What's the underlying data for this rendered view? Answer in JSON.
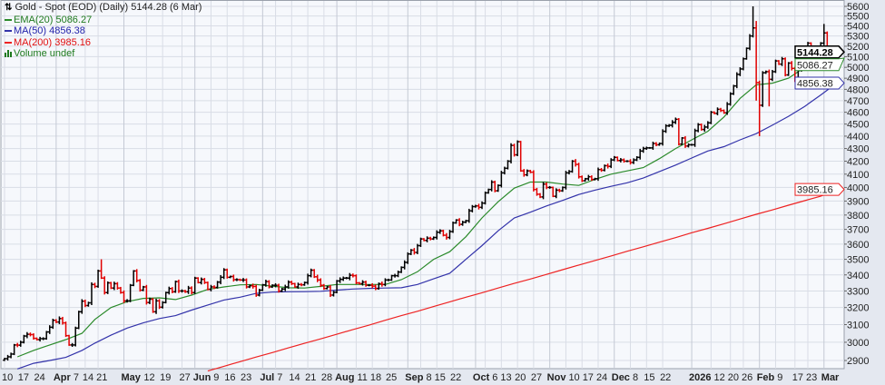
{
  "legend": {
    "title": "Gold - Spot (EOD) (Daily) 5144.28 (6 Mar)",
    "ema20": "EMA(20) 5086.27",
    "ma50": "MA(50) 4856.38",
    "ma200": "MA(200) 3985.16",
    "volume": "Volume undef"
  },
  "colors": {
    "up_bar": "#000000",
    "down_bar": "#e00000",
    "ema20": "#2a8a2a",
    "ma50": "#3333aa",
    "ma200": "#ee2222",
    "plot_bg": "#f6f8fc",
    "grid": "#d9dde6"
  },
  "chart_data": {
    "type": "bar",
    "bar_style": "OHLC",
    "scale": "log",
    "ylim": [
      2850,
      5650
    ],
    "grid": true,
    "legend_placement": "top-left",
    "y_axis_side": "right",
    "y_ticks": [
      "2900",
      "3000",
      "3100",
      "3200",
      "3300",
      "3400",
      "3500",
      "3600",
      "3700",
      "3800",
      "3900",
      "4000",
      "4100",
      "4200",
      "4300",
      "4400",
      "4500",
      "4600",
      "4700",
      "4800",
      "4900",
      "5000",
      "5100",
      "5200",
      "5300",
      "5400",
      "5500",
      "5600"
    ],
    "x_ticks": [
      {
        "label": "10",
        "date": "2025-03-10",
        "bold": false
      },
      {
        "label": "17",
        "date": "2025-03-17",
        "bold": false
      },
      {
        "label": "24",
        "date": "2025-03-24",
        "bold": false
      },
      {
        "label": "Apr",
        "date": "2025-04-01",
        "bold": true
      },
      {
        "label": "7",
        "date": "2025-04-07",
        "bold": false
      },
      {
        "label": "14",
        "date": "2025-04-14",
        "bold": false
      },
      {
        "label": "21",
        "date": "2025-04-21",
        "bold": false
      },
      {
        "label": "May",
        "date": "2025-05-01",
        "bold": true
      },
      {
        "label": "12",
        "date": "2025-05-12",
        "bold": false
      },
      {
        "label": "19",
        "date": "2025-05-19",
        "bold": false
      },
      {
        "label": "27",
        "date": "2025-05-27",
        "bold": false
      },
      {
        "label": "Jun",
        "date": "2025-06-02",
        "bold": true
      },
      {
        "label": "9",
        "date": "2025-06-09",
        "bold": false
      },
      {
        "label": "16",
        "date": "2025-06-16",
        "bold": false
      },
      {
        "label": "23",
        "date": "2025-06-23",
        "bold": false
      },
      {
        "label": "Jul",
        "date": "2025-07-01",
        "bold": true
      },
      {
        "label": "7",
        "date": "2025-07-07",
        "bold": false
      },
      {
        "label": "14",
        "date": "2025-07-14",
        "bold": false
      },
      {
        "label": "21",
        "date": "2025-07-21",
        "bold": false
      },
      {
        "label": "28",
        "date": "2025-07-28",
        "bold": false
      },
      {
        "label": "Aug",
        "date": "2025-08-01",
        "bold": true
      },
      {
        "label": "11",
        "date": "2025-08-11",
        "bold": false
      },
      {
        "label": "18",
        "date": "2025-08-18",
        "bold": false
      },
      {
        "label": "25",
        "date": "2025-08-25",
        "bold": false
      },
      {
        "label": "Sep",
        "date": "2025-09-02",
        "bold": true
      },
      {
        "label": "8",
        "date": "2025-09-08",
        "bold": false
      },
      {
        "label": "15",
        "date": "2025-09-15",
        "bold": false
      },
      {
        "label": "22",
        "date": "2025-09-22",
        "bold": false
      },
      {
        "label": "Oct",
        "date": "2025-10-01",
        "bold": true
      },
      {
        "label": "6",
        "date": "2025-10-06",
        "bold": false
      },
      {
        "label": "13",
        "date": "2025-10-13",
        "bold": false
      },
      {
        "label": "20",
        "date": "2025-10-20",
        "bold": false
      },
      {
        "label": "27",
        "date": "2025-10-27",
        "bold": false
      },
      {
        "label": "Nov",
        "date": "2025-11-03",
        "bold": true
      },
      {
        "label": "10",
        "date": "2025-11-10",
        "bold": false
      },
      {
        "label": "17",
        "date": "2025-11-17",
        "bold": false
      },
      {
        "label": "24",
        "date": "2025-11-24",
        "bold": false
      },
      {
        "label": "Dec",
        "date": "2025-12-01",
        "bold": true
      },
      {
        "label": "8",
        "date": "2025-12-08",
        "bold": false
      },
      {
        "label": "15",
        "date": "2025-12-15",
        "bold": false
      },
      {
        "label": "22",
        "date": "2025-12-22",
        "bold": false
      },
      {
        "label": "2026",
        "date": "2026-01-02",
        "bold": true
      },
      {
        "label": "12",
        "date": "2026-01-12",
        "bold": false
      },
      {
        "label": "20",
        "date": "2026-01-20",
        "bold": false
      },
      {
        "label": "26",
        "date": "2026-01-26",
        "bold": false
      },
      {
        "label": "Feb",
        "date": "2026-02-02",
        "bold": true
      },
      {
        "label": "9",
        "date": "2026-02-09",
        "bold": false
      },
      {
        "label": "17",
        "date": "2026-02-17",
        "bold": false
      },
      {
        "label": "23",
        "date": "2026-02-23",
        "bold": false
      },
      {
        "label": "Mar",
        "date": "2026-03-02",
        "bold": true
      }
    ],
    "price_tags": [
      {
        "label": "5086.27",
        "value": 5086.27,
        "series": "ema20"
      },
      {
        "label": "5144.28",
        "value": 5144.28,
        "series": "price"
      },
      {
        "label": "4856.38",
        "value": 4856.38,
        "series": "ma50"
      },
      {
        "label": "3985.16",
        "value": 3985.16,
        "series": "ma200"
      }
    ],
    "holidays": [
      "2025-04-18"
    ],
    "extremes": [
      {
        "date": "2025-04-22",
        "high": 3500
      },
      {
        "date": "2026-01-29",
        "high": 5600
      },
      {
        "date": "2026-01-30",
        "high": 5450,
        "low": 4700
      },
      {
        "date": "2026-02-02",
        "low": 4400
      },
      {
        "date": "2026-02-05",
        "low": 4650
      },
      {
        "date": "2026-03-02",
        "high": 5420
      }
    ],
    "weeks": [
      {
        "week": "2025-03-10",
        "close": [
          2910,
          2920,
          2935,
          2985,
          2984
        ],
        "ema20": 2920,
        "ma50": 2855,
        "ma200": null
      },
      {
        "week": "2025-03-17",
        "close": [
          3000,
          3035,
          3045,
          3043,
          3022
        ],
        "ema20": 2955,
        "ma50": 2885,
        "ma200": null
      },
      {
        "week": "2025-03-24",
        "close": [
          3015,
          3020,
          3020,
          3058,
          3085
        ],
        "ema20": 2985,
        "ma50": 2900,
        "ma200": null
      },
      {
        "week": "2025-03-31",
        "close": [
          3125,
          3115,
          3135,
          3110,
          3037
        ],
        "ema20": 3015,
        "ma50": 2917,
        "ma200": null
      },
      {
        "week": "2025-04-07",
        "close": [
          2985,
          2985,
          3080,
          3175,
          3238
        ],
        "ema20": 3050,
        "ma50": 2955,
        "ma200": null
      },
      {
        "week": "2025-04-14",
        "close": [
          3212,
          3228,
          3340,
          3328
        ],
        "ema20": 3130,
        "ma50": 2995,
        "ma200": null
      },
      {
        "week": "2025-04-21",
        "close": [
          3425,
          3380,
          3290,
          3350,
          3318
        ],
        "ema20": 3200,
        "ma50": 3040,
        "ma200": null
      },
      {
        "week": "2025-04-28",
        "close": [
          3345,
          3318,
          3290,
          3240,
          3240
        ],
        "ema20": 3235,
        "ma50": 3080,
        "ma200": null
      },
      {
        "week": "2025-05-05",
        "close": [
          3335,
          3425,
          3365,
          3305,
          3325
        ],
        "ema20": 3255,
        "ma50": 3110,
        "ma200": null
      },
      {
        "week": "2025-05-12",
        "close": [
          3230,
          3250,
          3175,
          3240,
          3202
        ],
        "ema20": 3258,
        "ma50": 3135,
        "ma200": null
      },
      {
        "week": "2025-05-19",
        "close": [
          3230,
          3290,
          3315,
          3295,
          3358
        ],
        "ema20": 3248,
        "ma50": 3152,
        "ma200": null
      },
      {
        "week": "2025-05-26",
        "close": [
          3300,
          3300,
          3295,
          3318,
          3290
        ],
        "ema20": 3275,
        "ma50": 3185,
        "ma200": null
      },
      {
        "week": "2025-06-02",
        "close": [
          3380,
          3352,
          3372,
          3352,
          3310
        ],
        "ema20": 3310,
        "ma50": 3215,
        "ma200": 2844
      },
      {
        "week": "2025-06-09",
        "close": [
          3325,
          3322,
          3355,
          3385,
          3432
        ],
        "ema20": 3325,
        "ma50": 3245,
        "ma200": 2869
      },
      {
        "week": "2025-06-16",
        "close": [
          3385,
          3390,
          3370,
          3370,
          3368
        ],
        "ema20": 3338,
        "ma50": 3262,
        "ma200": 2894
      },
      {
        "week": "2025-06-23",
        "close": [
          3368,
          3325,
          3332,
          3328,
          3275
        ],
        "ema20": 3340,
        "ma50": 3285,
        "ma200": 2919
      },
      {
        "week": "2025-06-30",
        "close": [
          3305,
          3338,
          3358,
          3325,
          3335
        ],
        "ema20": 3330,
        "ma50": 3293,
        "ma200": 2943
      },
      {
        "week": "2025-07-07",
        "close": [
          3335,
          3300,
          3312,
          3325,
          3355
        ],
        "ema20": 3320,
        "ma50": 3295,
        "ma200": 2969
      },
      {
        "week": "2025-07-14",
        "close": [
          3345,
          3325,
          3340,
          3338,
          3352
        ],
        "ema20": 3318,
        "ma50": 3296,
        "ma200": 2994
      },
      {
        "week": "2025-07-21",
        "close": [
          3395,
          3430,
          3388,
          3368,
          3335
        ],
        "ema20": 3328,
        "ma50": 3298,
        "ma200": 3019
      },
      {
        "week": "2025-07-28",
        "close": [
          3315,
          3325,
          3275,
          3292,
          3362
        ],
        "ema20": 3340,
        "ma50": 3305,
        "ma200": 3045
      },
      {
        "week": "2025-08-04",
        "close": [
          3372,
          3380,
          3380,
          3398,
          3395
        ],
        "ema20": 3340,
        "ma50": 3312,
        "ma200": 3072
      },
      {
        "week": "2025-08-11",
        "close": [
          3350,
          3345,
          3355,
          3335,
          3335
        ],
        "ema20": 3340,
        "ma50": 3316,
        "ma200": 3097
      },
      {
        "week": "2025-08-18",
        "close": [
          3330,
          3315,
          3345,
          3340,
          3368
        ],
        "ema20": 3340,
        "ma50": 3318,
        "ma200": 3125
      },
      {
        "week": "2025-08-25",
        "close": [
          3368,
          3395,
          3395,
          3418,
          3448
        ],
        "ema20": 3370,
        "ma50": 3320,
        "ma200": 3152
      },
      {
        "week": "2025-09-01",
        "close": [
          3480,
          3535,
          3560,
          3545,
          3590
        ],
        "ema20": 3420,
        "ma50": 3340,
        "ma200": 3178
      },
      {
        "week": "2025-09-08",
        "close": [
          3635,
          3625,
          3640,
          3635,
          3645
        ],
        "ema20": 3500,
        "ma50": 3375,
        "ma200": 3206
      },
      {
        "week": "2025-09-15",
        "close": [
          3680,
          3690,
          3660,
          3645,
          3685
        ],
        "ema20": 3550,
        "ma50": 3410,
        "ma200": 3234
      },
      {
        "week": "2025-09-22",
        "close": [
          3745,
          3765,
          3735,
          3750,
          3760
        ],
        "ema20": 3650,
        "ma50": 3500,
        "ma200": 3262
      },
      {
        "week": "2025-09-29",
        "close": [
          3830,
          3860,
          3865,
          3855,
          3885
        ],
        "ema20": 3780,
        "ma50": 3590,
        "ma200": 3289
      },
      {
        "week": "2025-10-06",
        "close": [
          3960,
          3985,
          4040,
          3975,
          4015
        ],
        "ema20": 3895,
        "ma50": 3690,
        "ma200": 3318
      },
      {
        "week": "2025-10-13",
        "close": [
          4110,
          4145,
          4200,
          4325,
          4250
        ],
        "ema20": 3995,
        "ma50": 3780,
        "ma200": 3347
      },
      {
        "week": "2025-10-20",
        "close": [
          4355,
          4125,
          4095,
          4125,
          4115
        ],
        "ema20": 4040,
        "ma50": 3820,
        "ma200": 3374
      },
      {
        "week": "2025-10-27",
        "close": [
          3985,
          3950,
          3930,
          4025,
          4000
        ],
        "ema20": 4040,
        "ma50": 3865,
        "ma200": 3403
      },
      {
        "week": "2025-11-03",
        "close": [
          4000,
          3935,
          3980,
          3975,
          4000
        ],
        "ema20": 4025,
        "ma50": 3905,
        "ma200": 3433
      },
      {
        "week": "2025-11-10",
        "close": [
          4110,
          4120,
          4200,
          4175,
          4080
        ],
        "ema20": 4015,
        "ma50": 3948,
        "ma200": 3463
      },
      {
        "week": "2025-11-17",
        "close": [
          4050,
          4065,
          4080,
          4060,
          4065
        ],
        "ema20": 4060,
        "ma50": 3980,
        "ma200": 3492
      },
      {
        "week": "2025-11-24",
        "close": [
          4135,
          4130,
          4165,
          4160,
          4210
        ],
        "ema20": 4100,
        "ma50": 4008,
        "ma200": 3522
      },
      {
        "week": "2025-12-01",
        "close": [
          4230,
          4205,
          4210,
          4200,
          4200
        ],
        "ema20": 4125,
        "ma50": 4035,
        "ma200": 3553
      },
      {
        "week": "2025-12-08",
        "close": [
          4190,
          4210,
          4230,
          4280,
          4300
        ],
        "ema20": 4150,
        "ma50": 4070,
        "ma200": 3582
      },
      {
        "week": "2025-12-15",
        "close": [
          4305,
          4305,
          4340,
          4330,
          4340
        ],
        "ema20": 4220,
        "ma50": 4120,
        "ma200": 3613
      },
      {
        "week": "2025-12-22",
        "close": [
          4440,
          4485,
          4490,
          4515,
          4540
        ],
        "ema20": 4300,
        "ma50": 4170,
        "ma200": 3644
      },
      {
        "week": "2025-12-29",
        "close": [
          4335,
          4385,
          4320,
          4330,
          4330
        ],
        "ema20": 4370,
        "ma50": 4225,
        "ma200": 3677
      },
      {
        "week": "2026-01-05",
        "close": [
          4445,
          4495,
          4455,
          4475,
          4510
        ],
        "ema20": 4440,
        "ma50": 4280,
        "ma200": 3707
      },
      {
        "week": "2026-01-12",
        "close": [
          4600,
          4590,
          4625,
          4615,
          4595
        ],
        "ema20": 4560,
        "ma50": 4315,
        "ma200": 3739
      },
      {
        "week": "2026-01-19",
        "close": [
          4670,
          4760,
          4830,
          4935,
          4985
        ],
        "ema20": 4720,
        "ma50": 4370,
        "ma200": 3772
      },
      {
        "week": "2026-01-26",
        "close": [
          5080,
          5180,
          5300,
          5380,
          4860
        ],
        "ema20": 4840,
        "ma50": 4420,
        "ma200": 3805
      },
      {
        "week": "2026-02-02",
        "close": [
          4660,
          4950,
          4960,
          4890,
          4960
        ],
        "ema20": 4855,
        "ma50": 4490,
        "ma200": 3836
      },
      {
        "week": "2026-02-09",
        "close": [
          5060,
          5030,
          5080,
          4930,
          5040
        ],
        "ema20": 4900,
        "ma50": 4565,
        "ma200": 3870
      },
      {
        "week": "2026-02-16",
        "close": [
          4990,
          4880,
          4980,
          5000,
          5100
        ],
        "ema20": 5000,
        "ma50": 4650,
        "ma200": 3903
      },
      {
        "week": "2026-02-23",
        "close": [
          5230,
          5150,
          5180,
          5170,
          5230
        ],
        "ema20": 5070,
        "ma50": 4750,
        "ma200": 3935
      },
      {
        "week": "2026-03-02",
        "close": [
          5330,
          5090,
          5140,
          5080,
          5144.28
        ],
        "ema20": 5086.27,
        "ma50": 4856.38,
        "ma200": 3985.16
      }
    ]
  }
}
